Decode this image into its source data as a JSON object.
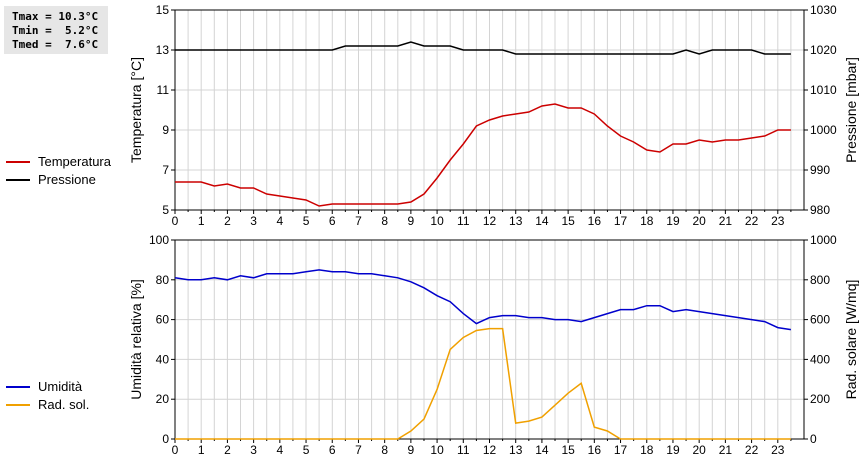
{
  "stats": {
    "tmax": "Tmax = 10.3°C",
    "tmin": "Tmin =  5.2°C",
    "tmed": "Tmed =  7.6°C"
  },
  "chart_data": [
    {
      "type": "line",
      "title": "",
      "xlabel": "",
      "ylabel": "Temperatura [°C]",
      "y2label": "Pressione [mbar]",
      "xlim": [
        0,
        24
      ],
      "ylim": [
        5,
        15
      ],
      "y2lim": [
        980,
        1030
      ],
      "xticks": [
        "0",
        "1",
        "2",
        "3",
        "4",
        "5",
        "6",
        "7",
        "8",
        "9",
        "10",
        "11",
        "12",
        "13",
        "14",
        "15",
        "16",
        "17",
        "18",
        "19",
        "20",
        "21",
        "22",
        "23"
      ],
      "yticks": [
        "5",
        "7",
        "9",
        "11",
        "13",
        "15"
      ],
      "y2ticks": [
        "980",
        "990",
        "1000",
        "1010",
        "1020",
        "1030"
      ],
      "grid": true,
      "legend": "left",
      "series": [
        {
          "name": "Temperatura",
          "axis": "left",
          "color": "#cc0000",
          "x": [
            0,
            0.5,
            1,
            1.5,
            2,
            2.5,
            3,
            3.5,
            4,
            4.5,
            5,
            5.5,
            6,
            6.5,
            7,
            7.5,
            8,
            8.5,
            9,
            9.5,
            10,
            10.5,
            11,
            11.5,
            12,
            12.5,
            13,
            13.5,
            14,
            14.5,
            15,
            15.5,
            16,
            16.5,
            17,
            17.5,
            18,
            18.5,
            19,
            19.5,
            20,
            20.5,
            21,
            21.5,
            22,
            22.5,
            23,
            23.5
          ],
          "y": [
            6.4,
            6.4,
            6.4,
            6.2,
            6.3,
            6.1,
            6.1,
            5.8,
            5.7,
            5.6,
            5.5,
            5.2,
            5.3,
            5.3,
            5.3,
            5.3,
            5.3,
            5.3,
            5.4,
            5.8,
            6.6,
            7.5,
            8.3,
            9.2,
            9.5,
            9.7,
            9.8,
            9.9,
            10.2,
            10.3,
            10.1,
            10.1,
            9.8,
            9.2,
            8.7,
            8.4,
            8.0,
            7.9,
            8.3,
            8.3,
            8.5,
            8.4,
            8.5,
            8.5,
            8.6,
            8.7,
            9.0,
            9.0
          ]
        },
        {
          "name": "Pressione",
          "axis": "right",
          "color": "#000000",
          "x": [
            0,
            0.5,
            1,
            1.5,
            2,
            2.5,
            3,
            3.5,
            4,
            4.5,
            5,
            5.5,
            6,
            6.5,
            7,
            7.5,
            8,
            8.5,
            9,
            9.5,
            10,
            10.5,
            11,
            11.5,
            12,
            12.5,
            13,
            13.5,
            14,
            14.5,
            15,
            15.5,
            16,
            16.5,
            17,
            17.5,
            18,
            18.5,
            19,
            19.5,
            20,
            20.5,
            21,
            21.5,
            22,
            22.5,
            23,
            23.5
          ],
          "y": [
            1020,
            1020,
            1020,
            1020,
            1020,
            1020,
            1020,
            1020,
            1020,
            1020,
            1020,
            1020,
            1020,
            1021,
            1021,
            1021,
            1021,
            1021,
            1022,
            1021,
            1021,
            1021,
            1020,
            1020,
            1020,
            1020,
            1019,
            1019,
            1019,
            1019,
            1019,
            1019,
            1019,
            1019,
            1019,
            1019,
            1019,
            1019,
            1019,
            1020,
            1019,
            1020,
            1020,
            1020,
            1020,
            1019,
            1019,
            1019
          ]
        }
      ]
    },
    {
      "type": "line",
      "title": "",
      "xlabel": "",
      "ylabel": "Umidità relativa [%]",
      "y2label": "Rad. solare [W/mq]",
      "xlim": [
        0,
        24
      ],
      "ylim": [
        0,
        100
      ],
      "y2lim": [
        0,
        1000
      ],
      "xticks": [
        "0",
        "1",
        "2",
        "3",
        "4",
        "5",
        "6",
        "7",
        "8",
        "9",
        "10",
        "11",
        "12",
        "13",
        "14",
        "15",
        "16",
        "17",
        "18",
        "19",
        "20",
        "21",
        "22",
        "23"
      ],
      "yticks": [
        "0",
        "20",
        "40",
        "60",
        "80",
        "100"
      ],
      "y2ticks": [
        "0",
        "200",
        "400",
        "600",
        "800",
        "1000"
      ],
      "grid": true,
      "legend": "left",
      "series": [
        {
          "name": "Umidità",
          "axis": "left",
          "color": "#0000cc",
          "x": [
            0,
            0.5,
            1,
            1.5,
            2,
            2.5,
            3,
            3.5,
            4,
            4.5,
            5,
            5.5,
            6,
            6.5,
            7,
            7.5,
            8,
            8.5,
            9,
            9.5,
            10,
            10.5,
            11,
            11.5,
            12,
            12.5,
            13,
            13.5,
            14,
            14.5,
            15,
            15.5,
            16,
            16.5,
            17,
            17.5,
            18,
            18.5,
            19,
            19.5,
            20,
            20.5,
            21,
            21.5,
            22,
            22.5,
            23,
            23.5
          ],
          "y": [
            81,
            80,
            80,
            81,
            80,
            82,
            81,
            83,
            83,
            83,
            84,
            85,
            84,
            84,
            83,
            83,
            82,
            81,
            79,
            76,
            72,
            69,
            63,
            58,
            61,
            62,
            62,
            61,
            61,
            60,
            60,
            59,
            61,
            63,
            65,
            65,
            67,
            67,
            64,
            65,
            64,
            63,
            62,
            61,
            60,
            59,
            56,
            55
          ]
        },
        {
          "name": "Rad. sol.",
          "axis": "right",
          "color": "#f0a000",
          "x": [
            0,
            0.5,
            1,
            1.5,
            2,
            2.5,
            3,
            3.5,
            4,
            4.5,
            5,
            5.5,
            6,
            6.5,
            7,
            7.5,
            8,
            8.5,
            9,
            9.5,
            10,
            10.5,
            11,
            11.5,
            12,
            12.5,
            13,
            13.5,
            14,
            14.5,
            15,
            15.5,
            16,
            16.5,
            17,
            17.5,
            18,
            18.5,
            19,
            19.5,
            20,
            20.5,
            21,
            21.5,
            22,
            22.5,
            23,
            23.5
          ],
          "y": [
            0,
            0,
            0,
            0,
            0,
            0,
            0,
            0,
            0,
            0,
            0,
            0,
            0,
            0,
            0,
            0,
            0,
            0,
            40,
            100,
            250,
            450,
            510,
            545,
            555,
            555,
            80,
            90,
            110,
            170,
            230,
            280,
            60,
            40,
            0,
            0,
            0,
            0,
            0,
            0,
            0,
            0,
            0,
            0,
            0,
            0,
            0,
            0
          ]
        }
      ]
    }
  ]
}
